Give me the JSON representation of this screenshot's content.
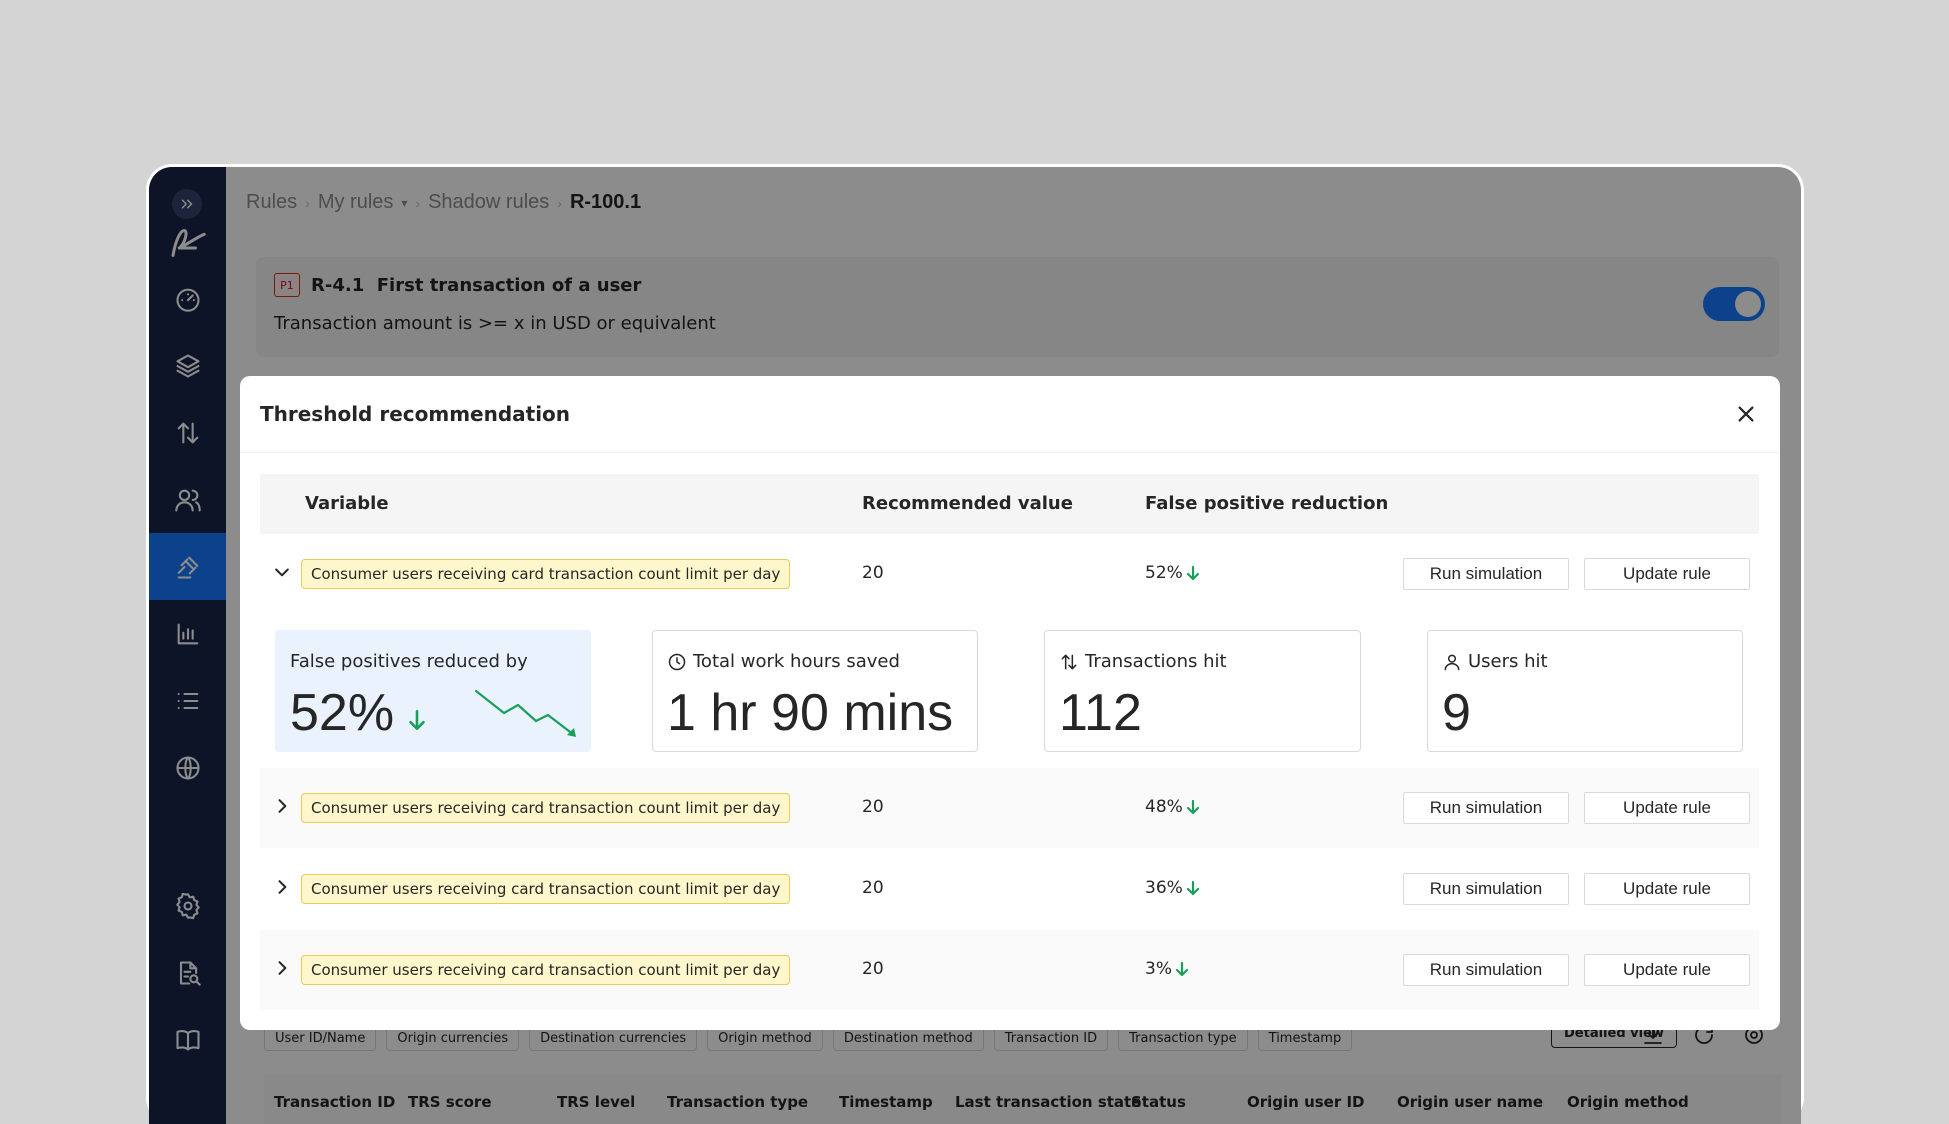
{
  "breadcrumb": {
    "items": [
      "Rules",
      "My rules",
      "Shadow rules",
      "R-100.1"
    ],
    "dropdown_glyph": "▾"
  },
  "rule_card": {
    "badge": "P1",
    "id": "R-4.1",
    "title": "First transaction of a user",
    "description": "Transaction amount is >= x in USD or equivalent",
    "enabled": true
  },
  "filters": [
    "User ID/Name",
    "Origin currencies",
    "Destination currencies",
    "Origin method",
    "Destination method",
    "Transaction ID",
    "Transaction type",
    "Timestamp"
  ],
  "detailed_view_label": "Detailed view",
  "table_columns": [
    "Transaction ID",
    "TRS score",
    "TRS level",
    "Transaction type",
    "Timestamp",
    "Last transaction state",
    "Status",
    "Origin user ID",
    "Origin user name",
    "Origin method"
  ],
  "modal": {
    "title": "Threshold recommendation",
    "columns": {
      "variable": "Variable",
      "recommended": "Recommended value",
      "fp_reduction": "False positive reduction"
    },
    "run_label": "Run simulation",
    "update_label": "Update rule",
    "rows": [
      {
        "variable": "Consumer users receiving card transaction count limit per day",
        "recommended": "20",
        "fp_reduction": "52%",
        "expanded": true
      },
      {
        "variable": "Consumer users receiving card transaction count limit per day",
        "recommended": "20",
        "fp_reduction": "48%",
        "expanded": false
      },
      {
        "variable": "Consumer users receiving card transaction count limit per day",
        "recommended": "20",
        "fp_reduction": "36%",
        "expanded": false
      },
      {
        "variable": "Consumer users receiving card transaction count limit per day",
        "recommended": "20",
        "fp_reduction": "3%",
        "expanded": false
      }
    ],
    "stats": {
      "fp_reduced": {
        "label": "False positives reduced by",
        "value": "52%"
      },
      "hours_saved": {
        "label": "Total work hours saved",
        "value": "1 hr 90 mins"
      },
      "transactions_hit": {
        "label": "Transactions hit",
        "value": "112"
      },
      "users_hit": {
        "label": "Users hit",
        "value": "9"
      }
    }
  },
  "colors": {
    "sidebar": "#18254a",
    "accent": "#1677ff",
    "positive": "#18a058",
    "tag_bg": "#fff7cc"
  }
}
